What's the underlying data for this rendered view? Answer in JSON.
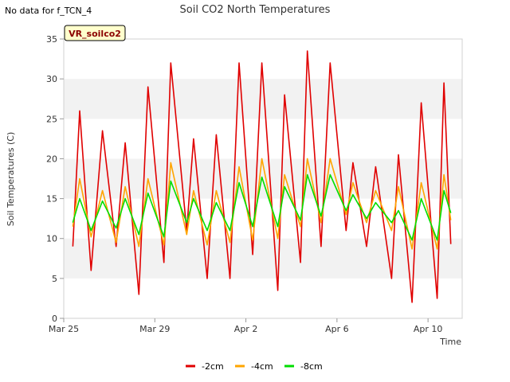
{
  "notice": "No data for f_TCN_4",
  "chart_data": {
    "type": "line",
    "title": "Soil CO2 North Temperatures",
    "xlabel": "Time",
    "ylabel": "Soil Temperatures (C)",
    "ylim": [
      0,
      35
    ],
    "yticks": [
      0,
      5,
      10,
      15,
      20,
      25,
      30,
      35
    ],
    "xlim": [
      "Mar 25",
      "Apr 11"
    ],
    "xticks": [
      "Mar 25",
      "Mar 29",
      "Apr 2",
      "Apr 6",
      "Apr 10"
    ],
    "grid": "horizontal bands",
    "legend_position": "bottom-center",
    "site_badge": "VR_soilco2",
    "x": [
      "Mar 25.4",
      "Mar 25.7",
      "Mar 26.2",
      "Mar 26.7",
      "Mar 27.3",
      "Mar 27.7",
      "Mar 28.3",
      "Mar 28.7",
      "Mar 29.4",
      "Mar 29.7",
      "Mar 30.4",
      "Mar 30.7",
      "Mar 31.3",
      "Mar 31.7",
      "Apr 1.3",
      "Apr 1.7",
      "Apr 2.3",
      "Apr 2.7",
      "Apr 3.4",
      "Apr 3.7",
      "Apr 4.4",
      "Apr 4.7",
      "Apr 5.3",
      "Apr 5.7",
      "Apr 6.4",
      "Apr 6.7",
      "Apr 7.3",
      "Apr 7.7",
      "Apr 8.4",
      "Apr 8.7",
      "Apr 9.3",
      "Apr 9.7",
      "Apr 10.4",
      "Apr 10.7",
      "Apr 11.0"
    ],
    "series": [
      {
        "name": "-2cm",
        "color": "#e00000",
        "values": [
          9,
          26,
          6,
          23.5,
          9,
          22,
          3,
          29,
          7,
          32,
          11,
          22.5,
          5,
          23,
          5,
          32,
          8,
          32,
          3.5,
          28,
          7,
          33.5,
          9,
          32,
          11,
          19.5,
          9,
          19,
          5,
          20.5,
          2,
          27,
          2.5,
          29.5,
          9.3
        ]
      },
      {
        "name": "-4cm",
        "color": "#ffa500",
        "values": [
          11.5,
          17.5,
          10.2,
          16,
          9.5,
          16.5,
          9,
          17.5,
          9.2,
          19.5,
          10.5,
          16,
          9.2,
          16,
          9.5,
          19,
          9.8,
          20,
          10,
          18,
          11.5,
          20,
          12,
          20,
          13,
          17,
          12,
          16,
          11,
          16.5,
          8.7,
          17,
          8.7,
          18,
          12.3
        ]
      },
      {
        "name": "-8cm",
        "color": "#00dd00",
        "values": [
          12,
          15,
          11,
          14.7,
          11.3,
          15,
          10.5,
          15.7,
          10.2,
          17.2,
          12,
          15,
          11,
          14.5,
          11,
          17,
          11.5,
          17.7,
          11.5,
          16.5,
          12.3,
          18,
          12.8,
          18,
          13.5,
          15.5,
          12.5,
          14.5,
          12,
          13.5,
          9.8,
          15,
          9.8,
          16,
          13.2
        ]
      }
    ]
  }
}
